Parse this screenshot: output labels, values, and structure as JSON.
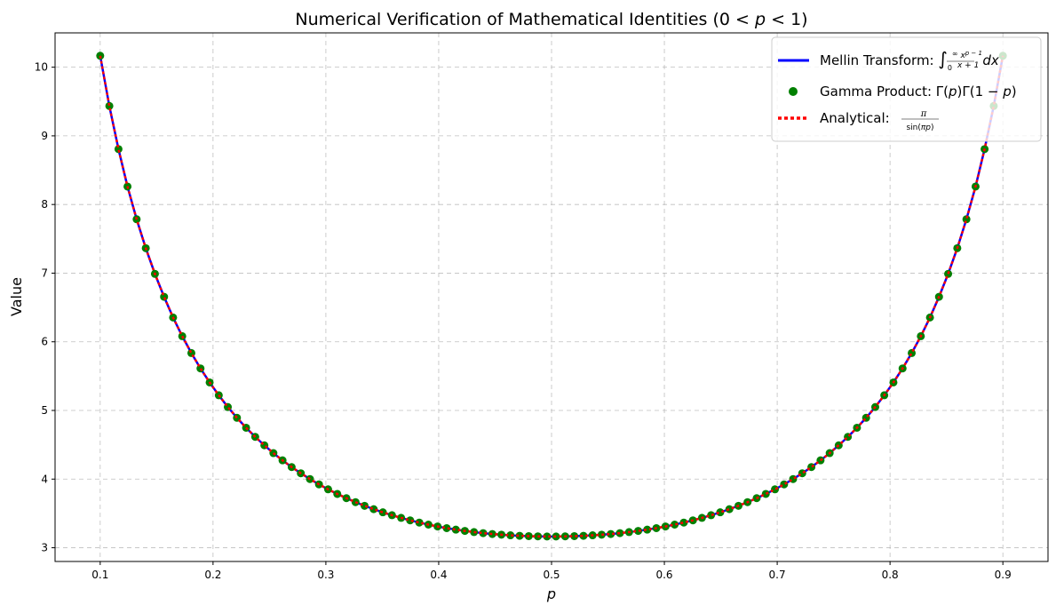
{
  "chart_data": {
    "type": "line",
    "title": "Numerical Verification of Mathematical Identities (0 < p < 1)",
    "xlabel": "p",
    "ylabel": "Value",
    "xlim": [
      0.06,
      0.94
    ],
    "ylim": [
      2.8,
      10.5
    ],
    "xticks": [
      "0.1",
      "0.2",
      "0.3",
      "0.4",
      "0.5",
      "0.6",
      "0.7",
      "0.8",
      "0.9"
    ],
    "yticks": [
      "3",
      "4",
      "5",
      "6",
      "7",
      "8",
      "9",
      "10"
    ],
    "grid": true,
    "legend_position": "top-right",
    "x": [
      0.1,
      0.1081,
      0.1162,
      0.1242,
      0.1323,
      0.1404,
      0.1485,
      0.1566,
      0.1646,
      0.1727,
      0.1808,
      0.1889,
      0.197,
      0.2051,
      0.2131,
      0.2212,
      0.2293,
      0.2374,
      0.2455,
      0.2535,
      0.2616,
      0.2697,
      0.2778,
      0.2859,
      0.2939,
      0.302,
      0.3101,
      0.3182,
      0.3263,
      0.3343,
      0.3424,
      0.3505,
      0.3586,
      0.3667,
      0.3747,
      0.3828,
      0.3909,
      0.399,
      0.4071,
      0.4152,
      0.4232,
      0.4313,
      0.4394,
      0.4475,
      0.4556,
      0.4636,
      0.4717,
      0.4798,
      0.4879,
      0.496,
      0.504,
      0.5121,
      0.5202,
      0.5283,
      0.5364,
      0.5444,
      0.5525,
      0.5606,
      0.5687,
      0.5768,
      0.5848,
      0.5929,
      0.601,
      0.6091,
      0.6172,
      0.6253,
      0.6333,
      0.6414,
      0.6495,
      0.6576,
      0.6657,
      0.6737,
      0.6818,
      0.6899,
      0.698,
      0.7061,
      0.7141,
      0.7222,
      0.7303,
      0.7384,
      0.7465,
      0.7545,
      0.7626,
      0.7707,
      0.7788,
      0.7869,
      0.7949,
      0.803,
      0.8111,
      0.8192,
      0.8273,
      0.8354,
      0.8434,
      0.8515,
      0.8596,
      0.8677,
      0.8758,
      0.8838,
      0.8919,
      0.9
    ],
    "series": [
      {
        "name": "Mellin Transform: ∫₀^∞ x^{p−1}/(x+1) dx",
        "style": "solid line",
        "color": "#0000ff",
        "values": [
          10.166,
          9.435,
          8.807,
          8.262,
          7.785,
          7.364,
          6.989,
          6.655,
          6.354,
          6.082,
          5.836,
          5.612,
          5.408,
          5.221,
          5.05,
          4.893,
          4.748,
          4.615,
          4.492,
          4.378,
          4.273,
          4.175,
          4.085,
          4.001,
          3.923,
          3.851,
          3.784,
          3.722,
          3.664,
          3.611,
          3.562,
          3.516,
          3.474,
          3.435,
          3.399,
          3.367,
          3.337,
          3.31,
          3.286,
          3.264,
          3.245,
          3.228,
          3.213,
          3.2,
          3.19,
          3.181,
          3.174,
          3.169,
          3.166,
          3.164,
          3.164,
          3.166,
          3.169,
          3.174,
          3.181,
          3.19,
          3.2,
          3.213,
          3.228,
          3.245,
          3.264,
          3.286,
          3.31,
          3.337,
          3.367,
          3.399,
          3.435,
          3.474,
          3.516,
          3.562,
          3.611,
          3.664,
          3.722,
          3.784,
          3.851,
          3.923,
          4.001,
          4.085,
          4.175,
          4.273,
          4.378,
          4.492,
          4.615,
          4.748,
          4.893,
          5.05,
          5.221,
          5.408,
          5.612,
          5.836,
          6.082,
          6.354,
          6.655,
          6.989,
          7.364,
          7.785,
          8.262,
          8.807,
          9.435,
          10.166
        ]
      },
      {
        "name": "Gamma Product: Γ(p)Γ(1−p)",
        "style": "circle markers",
        "color": "#008000",
        "values": [
          10.166,
          9.435,
          8.807,
          8.262,
          7.785,
          7.364,
          6.989,
          6.655,
          6.354,
          6.082,
          5.836,
          5.612,
          5.408,
          5.221,
          5.05,
          4.893,
          4.748,
          4.615,
          4.492,
          4.378,
          4.273,
          4.175,
          4.085,
          4.001,
          3.923,
          3.851,
          3.784,
          3.722,
          3.664,
          3.611,
          3.562,
          3.516,
          3.474,
          3.435,
          3.399,
          3.367,
          3.337,
          3.31,
          3.286,
          3.264,
          3.245,
          3.228,
          3.213,
          3.2,
          3.19,
          3.181,
          3.174,
          3.169,
          3.166,
          3.164,
          3.164,
          3.166,
          3.169,
          3.174,
          3.181,
          3.19,
          3.2,
          3.213,
          3.228,
          3.245,
          3.264,
          3.286,
          3.31,
          3.337,
          3.367,
          3.399,
          3.435,
          3.474,
          3.516,
          3.562,
          3.611,
          3.664,
          3.722,
          3.784,
          3.851,
          3.923,
          4.001,
          4.085,
          4.175,
          4.273,
          4.378,
          4.492,
          4.615,
          4.748,
          4.893,
          5.05,
          5.221,
          5.408,
          5.612,
          5.836,
          6.082,
          6.354,
          6.655,
          6.989,
          7.364,
          7.785,
          8.262,
          8.807,
          9.435,
          10.166
        ]
      },
      {
        "name": "Analytical: π/sin(πp)",
        "style": "dotted line",
        "color": "#ff0000",
        "values": [
          10.166,
          9.435,
          8.807,
          8.262,
          7.785,
          7.364,
          6.989,
          6.655,
          6.354,
          6.082,
          5.836,
          5.612,
          5.408,
          5.221,
          5.05,
          4.893,
          4.748,
          4.615,
          4.492,
          4.378,
          4.273,
          4.175,
          4.085,
          4.001,
          3.923,
          3.851,
          3.784,
          3.722,
          3.664,
          3.611,
          3.562,
          3.516,
          3.474,
          3.435,
          3.399,
          3.367,
          3.337,
          3.31,
          3.286,
          3.264,
          3.245,
          3.228,
          3.213,
          3.2,
          3.19,
          3.181,
          3.174,
          3.169,
          3.166,
          3.164,
          3.164,
          3.166,
          3.169,
          3.174,
          3.181,
          3.19,
          3.2,
          3.213,
          3.228,
          3.245,
          3.264,
          3.286,
          3.31,
          3.337,
          3.367,
          3.399,
          3.435,
          3.474,
          3.516,
          3.562,
          3.611,
          3.664,
          3.722,
          3.784,
          3.851,
          3.923,
          4.001,
          4.085,
          4.175,
          4.273,
          4.378,
          4.492,
          4.615,
          4.748,
          4.893,
          5.05,
          5.221,
          5.408,
          5.612,
          5.836,
          6.082,
          6.354,
          6.655,
          6.989,
          7.364,
          7.785,
          8.262,
          8.807,
          9.435,
          10.166
        ]
      }
    ]
  }
}
